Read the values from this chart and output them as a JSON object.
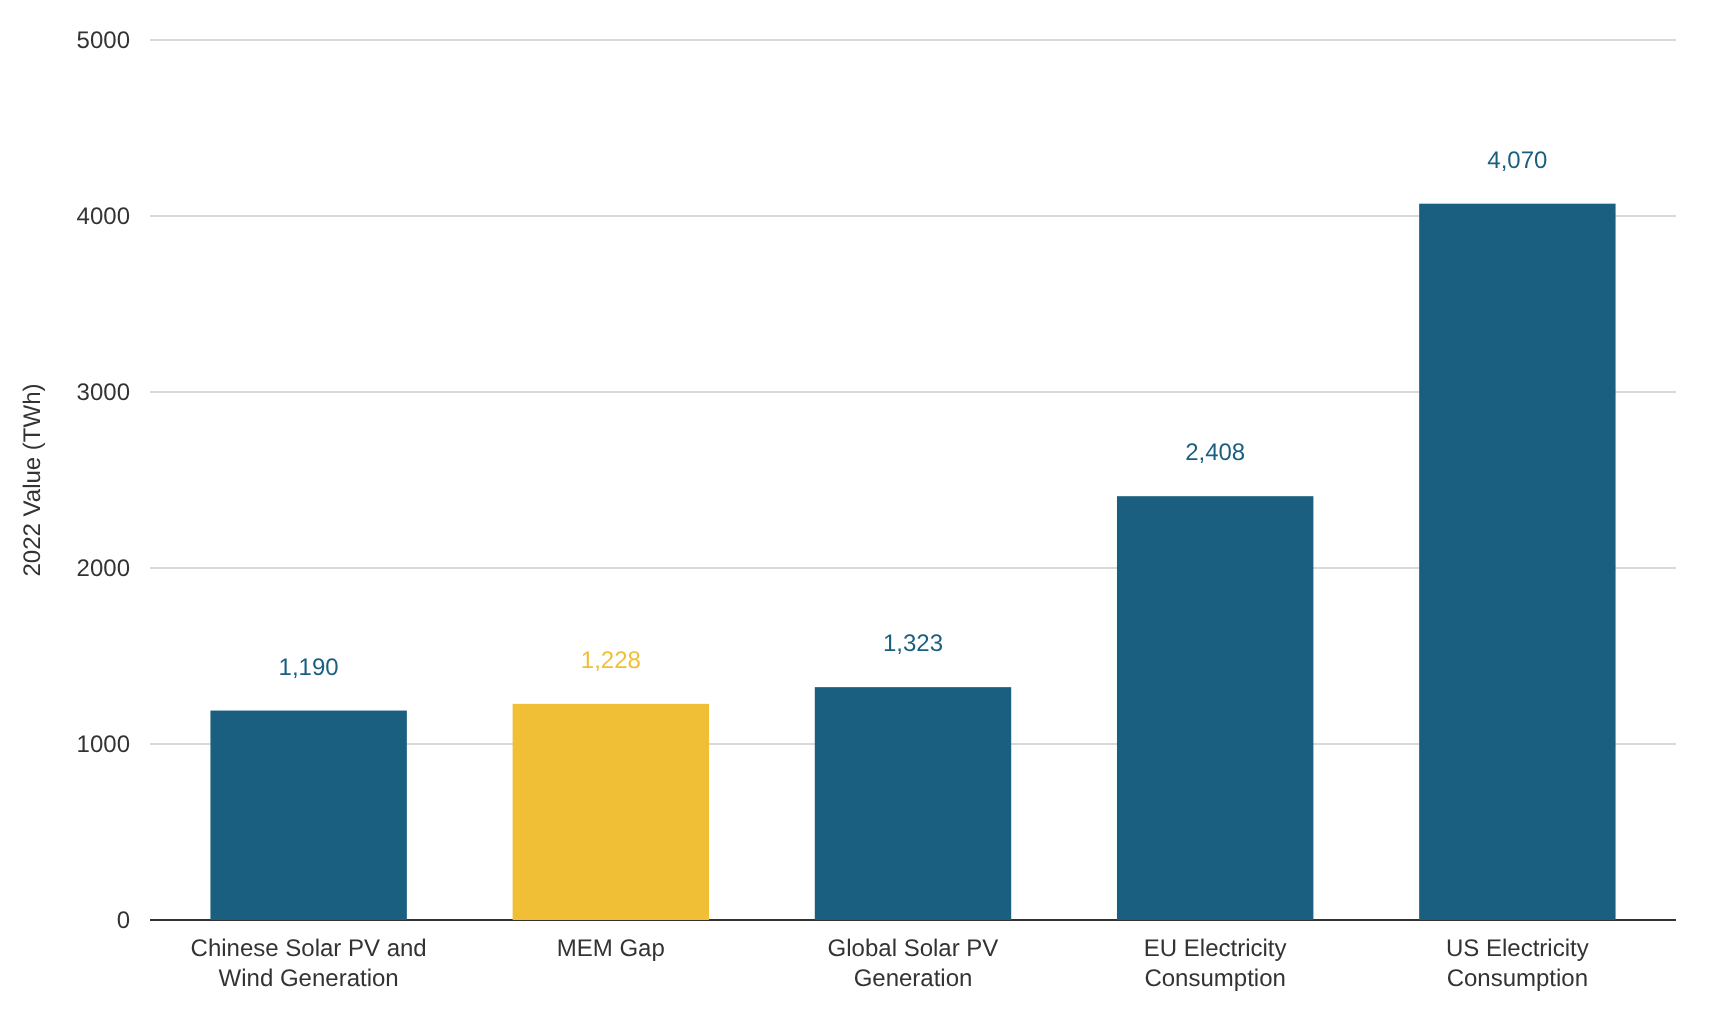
{
  "chart_data": {
    "type": "bar",
    "ylabel": "2022 Value (TWh)",
    "categories": [
      "Chinese Solar PV and Wind Generation",
      "MEM Gap",
      "Global Solar PV Generation",
      "EU Electricity Consumption",
      "US Electricity Consumption"
    ],
    "values": [
      1190,
      1228,
      1323,
      2408,
      4070
    ],
    "colors": [
      "#1a5f80",
      "#f0bf35",
      "#1a5f80",
      "#1a5f80",
      "#1a5f80"
    ],
    "value_labels": [
      "1,190",
      "1,228",
      "1,323",
      "2,408",
      "4,070"
    ],
    "ylim": [
      0,
      5000
    ],
    "yticks": [
      0,
      1000,
      2000,
      3000,
      4000,
      5000
    ],
    "grid": "y"
  }
}
